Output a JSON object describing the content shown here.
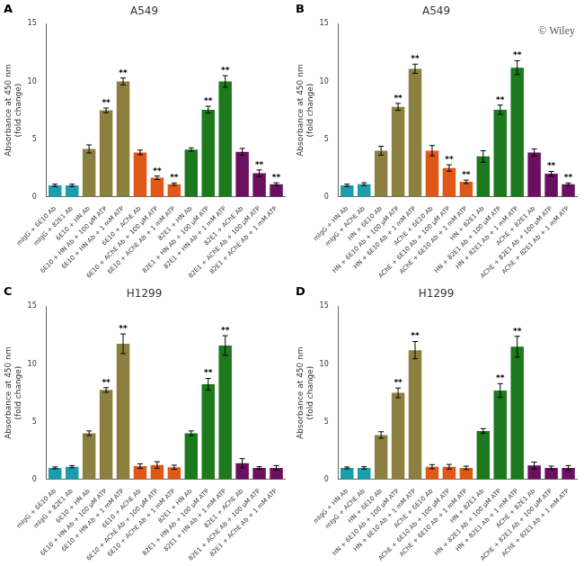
{
  "chart_data": [
    {
      "type": "bar",
      "title": "A549",
      "label": "A",
      "ylabel": "Absorbance at 450 nm\n(fold change)",
      "categories": [
        "mIgG + 6E10 Ab",
        "mIgG + 82E1 Ab",
        "6E10 + HN Ab",
        "6E10 + HN Ab + 100 μM ATP",
        "6E10 + HN Ab + 1 mM ATP",
        "6E10 + AChE Ab",
        "6E10 + AChE Ab + 100 μM ATP",
        "6E10 + AChE Ab + 1 mM ATP",
        "82E1 + HN Ab",
        "82E1 + HN Ab + 100 μM ATP",
        "82E1 + HN Ab + 1 mM ATP",
        "82E1 + AChE Ab",
        "82E1 + AChE Ab + 100 μM ATP",
        "82E1 + AChE Ab + 1 mM ATP"
      ],
      "values": [
        1.0,
        1.0,
        4.15,
        7.5,
        10.0,
        3.85,
        1.65,
        1.1,
        4.1,
        7.55,
        10.0,
        3.9,
        2.05,
        1.1
      ],
      "errors": [
        0.1,
        0.1,
        0.35,
        0.2,
        0.3,
        0.2,
        0.15,
        0.1,
        0.15,
        0.3,
        0.5,
        0.3,
        0.28,
        0.12
      ],
      "colors": [
        "#1B9EAA",
        "#1B9EAA",
        "#8B8040",
        "#8B8040",
        "#8B8040",
        "#E05818",
        "#E05818",
        "#E05818",
        "#1C7A1C",
        "#1C7A1C",
        "#1C7A1C",
        "#6B1060",
        "#6B1060",
        "#6B1060"
      ],
      "annotations": [
        {
          "text": "**",
          "x": "6E10 + HN Ab + 100 μM ATP"
        },
        {
          "text": "**",
          "x": "6E10 + HN Ab + 1 mM ATP"
        },
        {
          "text": "**",
          "x": "6E10 + AChE Ab + 100 μM ATP"
        },
        {
          "text": "**",
          "x": "6E10 + AChE Ab + 1 mM ATP"
        },
        {
          "text": "**",
          "x": "82E1 + HN Ab + 100 μM ATP"
        },
        {
          "text": "**",
          "x": "82E1 + HN Ab + 1 mM ATP"
        },
        {
          "text": "**",
          "x": "82E1 + AChE Ab + 100 μM ATP"
        },
        {
          "text": "**",
          "x": "82E1 + AChE Ab + 1 mM ATP"
        }
      ],
      "ylim": [
        0,
        15
      ],
      "yticks": [
        0,
        5,
        10,
        15
      ],
      "grid": false
    },
    {
      "type": "bar",
      "title": "A549",
      "label": "B",
      "ylabel": "Absorbance at 450 nm\n(fold change)",
      "categories": [
        "mIgG + HN Ab",
        "mIgG + AChE Ab",
        "HN + 6E10 Ab",
        "HN + 6E10 Ab + 100 μM ATP",
        "HN + 6E10 Ab + 1 mM ATP",
        "AChE + 6E10 Ab",
        "AChE + 6E10 Ab + 100 μM ATP",
        "AChE + 6E10 Ab + 1 mM ATP",
        "HN + 82E1 Ab",
        "HN + 82E1 Ab + 100 μM ATP",
        "HN + 82E1 Ab + 1 mM ATP",
        "AChE + 82E1 Ab",
        "AChE + 82E1 Ab + 100 μM ATP",
        "AChE + 82E1 Ab + 1 mM ATP"
      ],
      "values": [
        1.0,
        1.1,
        4.0,
        7.8,
        11.1,
        4.0,
        2.5,
        1.3,
        3.5,
        7.55,
        11.2,
        3.85,
        2.0,
        1.1
      ],
      "errors": [
        0.1,
        0.12,
        0.38,
        0.3,
        0.4,
        0.45,
        0.28,
        0.15,
        0.5,
        0.4,
        0.6,
        0.3,
        0.2,
        0.1
      ],
      "colors": [
        "#1B9EAA",
        "#1B9EAA",
        "#8B8040",
        "#8B8040",
        "#8B8040",
        "#E05818",
        "#E05818",
        "#E05818",
        "#1C7A1C",
        "#1C7A1C",
        "#1C7A1C",
        "#6B1060",
        "#6B1060",
        "#6B1060"
      ],
      "annotations": [
        {
          "text": "**",
          "x": "HN + 6E10 Ab + 100 μM ATP"
        },
        {
          "text": "**",
          "x": "HN + 6E10 Ab + 1 mM ATP"
        },
        {
          "text": "**",
          "x": "AChE + 6E10 Ab + 100 μM ATP"
        },
        {
          "text": "**",
          "x": "AChE + 6E10 Ab + 1 mM ATP"
        },
        {
          "text": "**",
          "x": "HN + 82E1 Ab + 100 μM ATP"
        },
        {
          "text": "**",
          "x": "HN + 82E1 Ab + 1 mM ATP"
        },
        {
          "text": "**",
          "x": "AChE + 82E1 Ab + 100 μM ATP"
        },
        {
          "text": "**",
          "x": "AChE + 82E1 Ab + 1 mM ATP"
        },
        {
          "text": "© Wiley"
        }
      ],
      "ylim": [
        0,
        15
      ],
      "yticks": [
        0,
        5,
        10,
        15
      ],
      "grid": false
    },
    {
      "type": "bar",
      "title": "H1299",
      "label": "C",
      "ylabel": "Absorbance at 450 nm\n(fold change)",
      "categories": [
        "mIgG + 6E10 Ab",
        "mIgG + 82E1 Ab",
        "6E10 + HN Ab",
        "6E10 + HN Ab + 100 μM ATP",
        "6E10 + HN Ab + 1 mM ATP",
        "6E10 + AChE Ab",
        "6E10 + AChE Ab + 100 μM ATP",
        "6E10 + AChE Ab + 1 mM ATP",
        "82E1 + HN Ab",
        "82E1 + HN Ab + 100 μM ATP",
        "82E1 + HN Ab + 1 mM ATP",
        "82E1 + AChE Ab",
        "82E1 + AChE Ab + 100 μM ATP",
        "82E1 + AChE Ab + 1 mM ATP"
      ],
      "values": [
        1.0,
        1.1,
        4.0,
        7.75,
        11.75,
        1.15,
        1.25,
        1.05,
        4.0,
        8.25,
        11.6,
        1.4,
        1.0,
        1.0
      ],
      "errors": [
        0.08,
        0.1,
        0.2,
        0.2,
        0.85,
        0.2,
        0.28,
        0.18,
        0.2,
        0.5,
        0.85,
        0.4,
        0.1,
        0.2
      ],
      "colors": [
        "#1B9EAA",
        "#1B9EAA",
        "#8B8040",
        "#8B8040",
        "#8B8040",
        "#E05818",
        "#E05818",
        "#E05818",
        "#1C7A1C",
        "#1C7A1C",
        "#1C7A1C",
        "#6B1060",
        "#6B1060",
        "#6B1060"
      ],
      "annotations": [
        {
          "text": "**",
          "x": "6E10 + HN Ab + 100 μM ATP"
        },
        {
          "text": "**",
          "x": "6E10 + HN Ab + 1 mM ATP"
        },
        {
          "text": "**",
          "x": "82E1 + HN Ab + 100 μM ATP"
        },
        {
          "text": "**",
          "x": "82E1 + HN Ab + 1 mM ATP"
        }
      ],
      "ylim": [
        0,
        15
      ],
      "yticks": [
        0,
        5,
        10,
        15
      ],
      "grid": false
    },
    {
      "type": "bar",
      "title": "H1299",
      "label": "D",
      "ylabel": "Absorbance at 450 nm\n(fold change)",
      "categories": [
        "mIgG + HN Ab",
        "mIgG + AChE Ab",
        "HN + 6E10 Ab",
        "HN + 6E10 Ab + 100 μM ATP",
        "HN + 6E10 Ab + 1 mM ATP",
        "AChE + 6E10 Ab",
        "AChE + 6E10 Ab + 100 μM ATP",
        "AChE + 6E10 Ab + 1 mM ATP",
        "HN + 82E1 Ab",
        "HN + 82E1 Ab + 100 μM ATP",
        "HN + 82E1 Ab + 1 mM ATP",
        "AChE + 82E1 Ab",
        "AChE + 82E1 Ab + 100 μM ATP",
        "AChE + 82E1 Ab + 1 mM ATP"
      ],
      "values": [
        1.0,
        1.0,
        3.85,
        7.5,
        11.2,
        1.1,
        1.1,
        1.0,
        4.2,
        7.7,
        11.5,
        1.2,
        1.0,
        1.0
      ],
      "errors": [
        0.08,
        0.1,
        0.28,
        0.42,
        0.75,
        0.18,
        0.2,
        0.15,
        0.2,
        0.6,
        0.9,
        0.3,
        0.15,
        0.2
      ],
      "colors": [
        "#1B9EAA",
        "#1B9EAA",
        "#8B8040",
        "#8B8040",
        "#8B8040",
        "#E05818",
        "#E05818",
        "#E05818",
        "#1C7A1C",
        "#1C7A1C",
        "#1C7A1C",
        "#6B1060",
        "#6B1060",
        "#6B1060"
      ],
      "annotations": [
        {
          "text": "**",
          "x": "HN + 6E10 Ab + 100 μM ATP"
        },
        {
          "text": "**",
          "x": "HN + 6E10 Ab + 1 mM ATP"
        },
        {
          "text": "**",
          "x": "HN + 82E1 Ab + 100 μM ATP"
        },
        {
          "text": "**",
          "x": "HN + 82E1 Ab + 1 mM ATP"
        }
      ],
      "ylim": [
        0,
        15
      ],
      "yticks": [
        0,
        5,
        10,
        15
      ],
      "grid": false
    }
  ]
}
